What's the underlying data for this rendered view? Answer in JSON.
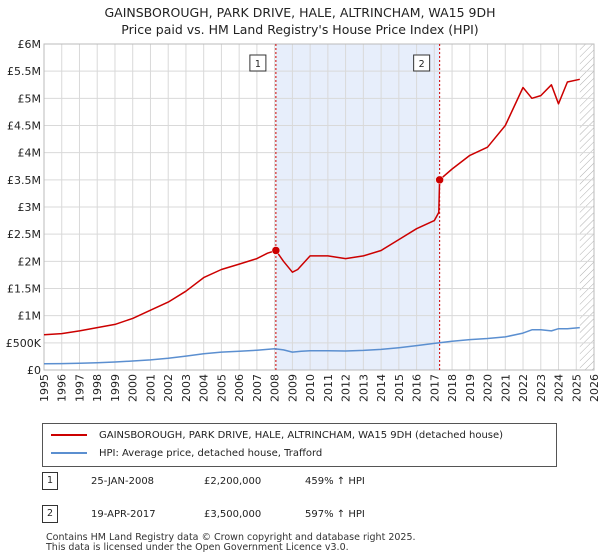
{
  "title_line1": "GAINSBOROUGH, PARK DRIVE, HALE, ALTRINCHAM, WA15 9DH",
  "title_line2": "Price paid vs. HM Land Registry's House Price Index (HPI)",
  "colors": {
    "property": "#cc0000",
    "hpi": "#5b8fd0",
    "shade": "#e7eefb",
    "grid": "#d9d9d9"
  },
  "legend": {
    "property_label": "GAINSBOROUGH, PARK DRIVE, HALE, ALTRINCHAM, WA15 9DH (detached house)",
    "hpi_label": "HPI: Average price, detached house, Trafford"
  },
  "transactions": [
    {
      "num": "1",
      "date": "25-JAN-2008",
      "price": "£2,200,000",
      "hpi": "459% ↑ HPI"
    },
    {
      "num": "2",
      "date": "19-APR-2017",
      "price": "£3,500,000",
      "hpi": "597% ↑ HPI"
    }
  ],
  "footer": {
    "line1": "Contains HM Land Registry data © Crown copyright and database right 2025.",
    "line2": "This data is licensed under the Open Government Licence v3.0."
  },
  "chart_data": {
    "type": "line",
    "title": "Price paid vs. HM Land Registry's House Price Index (HPI)",
    "xlim": [
      1995,
      2026
    ],
    "ylim": [
      0,
      6000000
    ],
    "x_ticks": [
      "1995",
      "1996",
      "1997",
      "1998",
      "1999",
      "2000",
      "2001",
      "2002",
      "2003",
      "2004",
      "2005",
      "2006",
      "2007",
      "2008",
      "2009",
      "2010",
      "2011",
      "2012",
      "2013",
      "2014",
      "2015",
      "2016",
      "2017",
      "2018",
      "2019",
      "2020",
      "2021",
      "2022",
      "2023",
      "2024",
      "2025",
      "2026"
    ],
    "y_ticks": [
      {
        "value": 0,
        "label": "£0"
      },
      {
        "value": 500000,
        "label": "£500K"
      },
      {
        "value": 1000000,
        "label": "£1M"
      },
      {
        "value": 1500000,
        "label": "£1.5M"
      },
      {
        "value": 2000000,
        "label": "£2M"
      },
      {
        "value": 2500000,
        "label": "£2.5M"
      },
      {
        "value": 3000000,
        "label": "£3M"
      },
      {
        "value": 3500000,
        "label": "£3.5M"
      },
      {
        "value": 4000000,
        "label": "£4M"
      },
      {
        "value": 4500000,
        "label": "£4.5M"
      },
      {
        "value": 5000000,
        "label": "£5M"
      },
      {
        "value": 5500000,
        "label": "£5.5M"
      },
      {
        "value": 6000000,
        "label": "£6M"
      }
    ],
    "shaded_range": [
      2008.07,
      2017.3
    ],
    "hatch_from": 2025.2,
    "markers": [
      {
        "label": "1",
        "x": 2008.07,
        "y": 2200000
      },
      {
        "label": "2",
        "x": 2017.3,
        "y": 3500000
      }
    ],
    "series": [
      {
        "name": "GAINSBOROUGH, PARK DRIVE, HALE, ALTRINCHAM, WA15 9DH (detached house)",
        "x": [
          1995,
          1996,
          1997,
          1998,
          1999,
          2000,
          2001,
          2002,
          2003,
          2004,
          2005,
          2006,
          2007,
          2007.6,
          2008.07,
          2008.5,
          2009.0,
          2009.3,
          2010.0,
          2011.0,
          2012.0,
          2013.0,
          2014.0,
          2015.0,
          2016.0,
          2017.0,
          2017.25,
          2017.3,
          2018.0,
          2019.0,
          2020.0,
          2021.0,
          2022.0,
          2022.5,
          2023.0,
          2023.6,
          2024.0,
          2024.5,
          2025.2
        ],
        "values": [
          650000,
          670000,
          720000,
          780000,
          840000,
          950000,
          1100000,
          1250000,
          1450000,
          1700000,
          1850000,
          1950000,
          2050000,
          2150000,
          2200000,
          2000000,
          1800000,
          1850000,
          2100000,
          2100000,
          2050000,
          2100000,
          2200000,
          2400000,
          2600000,
          2750000,
          2900000,
          3500000,
          3700000,
          3950000,
          4100000,
          4500000,
          5200000,
          5000000,
          5050000,
          5250000,
          4900000,
          5300000,
          5350000
        ]
      },
      {
        "name": "HPI: Average price, detached house, Trafford",
        "x": [
          1995,
          1996,
          1997,
          1998,
          1999,
          2000,
          2001,
          2002,
          2003,
          2004,
          2005,
          2006,
          2007,
          2008.0,
          2008.5,
          2009.0,
          2009.5,
          2010.0,
          2011.0,
          2012.0,
          2013.0,
          2014.0,
          2015.0,
          2016.0,
          2017.0,
          2018.0,
          2019.0,
          2020.0,
          2021.0,
          2022.0,
          2022.5,
          2023.0,
          2023.6,
          2024.0,
          2024.5,
          2025.2
        ],
        "values": [
          115000,
          118000,
          125000,
          135000,
          148000,
          165000,
          185000,
          215000,
          255000,
          300000,
          330000,
          345000,
          365000,
          390000,
          370000,
          330000,
          345000,
          355000,
          355000,
          350000,
          360000,
          380000,
          410000,
          450000,
          490000,
          530000,
          560000,
          580000,
          610000,
          680000,
          740000,
          740000,
          720000,
          760000,
          760000,
          780000
        ]
      }
    ]
  }
}
